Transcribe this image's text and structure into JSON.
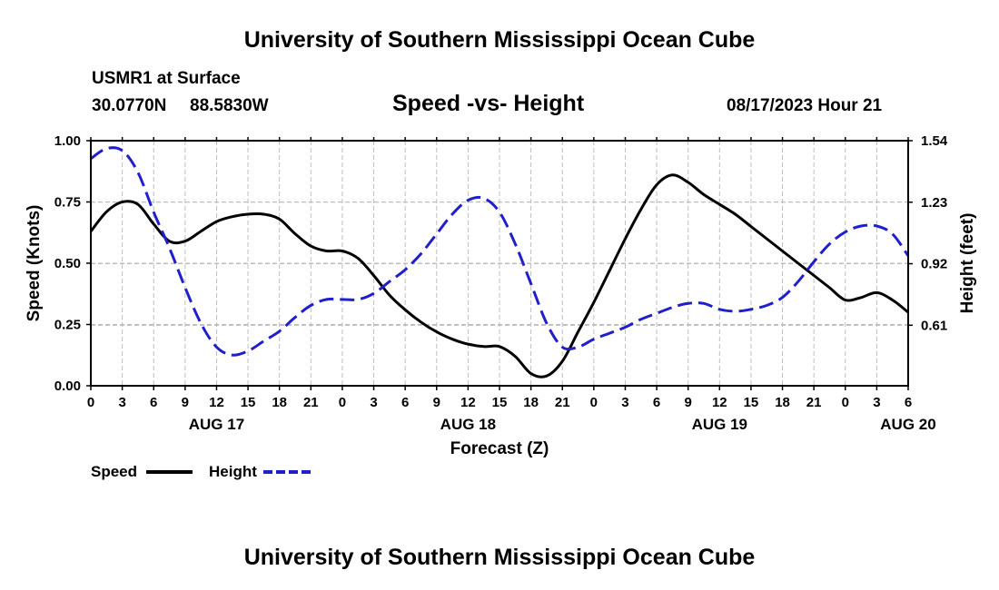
{
  "page": {
    "title_top": "University of Southern Mississippi Ocean Cube",
    "title_bottom": "University of Southern Mississippi Ocean Cube",
    "station": "USMR1 at Surface",
    "lat": "30.0770N",
    "lon": "88.5830W",
    "chart_title": "Speed -vs- Height",
    "timestamp": "08/17/2023 Hour 21"
  },
  "legend": {
    "speed": "Speed",
    "height": "Height"
  },
  "colors": {
    "speed": "#000000",
    "height": "#1f1fcc",
    "grid": "#bdbdbd"
  },
  "chart_data": {
    "type": "line",
    "title": "Speed -vs- Height",
    "xlabel": "Forecast (Z)",
    "ylabel": "Speed (Knots)",
    "y2label": "Height (feet)",
    "x_range": [
      0,
      78
    ],
    "ylim": [
      0,
      1
    ],
    "y_ticks": [
      "0.00",
      "0.25",
      "0.50",
      "0.75",
      "1.00"
    ],
    "y2lim": [
      0.305,
      1.54
    ],
    "y2_ticks": [
      "0.61",
      "0.92",
      "1.23",
      "1.54"
    ],
    "x_ticks": [
      "0",
      "3",
      "6",
      "9",
      "12",
      "15",
      "18",
      "21",
      "0",
      "3",
      "6",
      "9",
      "12",
      "15",
      "18",
      "21",
      "0",
      "3",
      "6",
      "9",
      "12",
      "15",
      "18",
      "21",
      "0",
      "3",
      "6"
    ],
    "date_labels": [
      {
        "label": "AUG 17",
        "at": 12
      },
      {
        "label": "AUG 18",
        "at": 36
      },
      {
        "label": "AUG 19",
        "at": 60
      },
      {
        "label": "AUG 20",
        "at": 78
      }
    ],
    "series": [
      {
        "name": "Speed",
        "style": "solid",
        "axis": "left",
        "x": [
          0,
          1.5,
          3,
          4.5,
          6,
          7.5,
          9,
          10.5,
          12,
          13.5,
          15,
          16.5,
          18,
          19.5,
          21,
          22.5,
          24,
          25.5,
          27,
          28.5,
          30,
          31.5,
          33,
          34.5,
          36,
          37.5,
          39,
          40.5,
          42,
          43.5,
          45,
          46.5,
          48,
          49.5,
          51,
          52.5,
          54,
          55.5,
          57,
          58.5,
          60,
          61.5,
          63,
          64.5,
          66,
          67.5,
          69,
          70.5,
          72,
          73.5,
          75,
          76.5,
          78
        ],
        "values": [
          0.63,
          0.71,
          0.75,
          0.74,
          0.66,
          0.59,
          0.59,
          0.63,
          0.67,
          0.69,
          0.7,
          0.7,
          0.68,
          0.62,
          0.57,
          0.55,
          0.55,
          0.52,
          0.45,
          0.37,
          0.31,
          0.26,
          0.22,
          0.19,
          0.17,
          0.16,
          0.16,
          0.12,
          0.05,
          0.04,
          0.1,
          0.22,
          0.34,
          0.47,
          0.6,
          0.72,
          0.82,
          0.86,
          0.83,
          0.78,
          0.74,
          0.7,
          0.65,
          0.6,
          0.55,
          0.5,
          0.45,
          0.4,
          0.35,
          0.36,
          0.38,
          0.35,
          0.3
        ]
      },
      {
        "name": "Height",
        "style": "dashed",
        "axis": "right",
        "x": [
          0,
          1.5,
          3,
          4.5,
          6,
          7.5,
          9,
          10.5,
          12,
          13.5,
          15,
          16.5,
          18,
          19.5,
          21,
          22.5,
          24,
          25.5,
          27,
          28.5,
          30,
          31.5,
          33,
          34.5,
          36,
          37.5,
          39,
          40.5,
          42,
          43.5,
          45,
          46.5,
          48,
          49.5,
          51,
          52.5,
          54,
          55.5,
          57,
          58.5,
          60,
          61.5,
          63,
          64.5,
          66,
          67.5,
          69,
          70.5,
          72,
          73.5,
          75,
          76.5,
          78
        ],
        "values": [
          1.45,
          1.5,
          1.49,
          1.38,
          1.18,
          1.0,
          0.8,
          0.62,
          0.5,
          0.46,
          0.48,
          0.53,
          0.58,
          0.65,
          0.71,
          0.74,
          0.74,
          0.74,
          0.77,
          0.83,
          0.89,
          0.97,
          1.07,
          1.17,
          1.24,
          1.25,
          1.18,
          1.02,
          0.82,
          0.62,
          0.5,
          0.5,
          0.54,
          0.57,
          0.6,
          0.64,
          0.67,
          0.7,
          0.72,
          0.72,
          0.69,
          0.68,
          0.69,
          0.71,
          0.75,
          0.83,
          0.93,
          1.02,
          1.08,
          1.11,
          1.11,
          1.07,
          0.96
        ]
      }
    ]
  }
}
